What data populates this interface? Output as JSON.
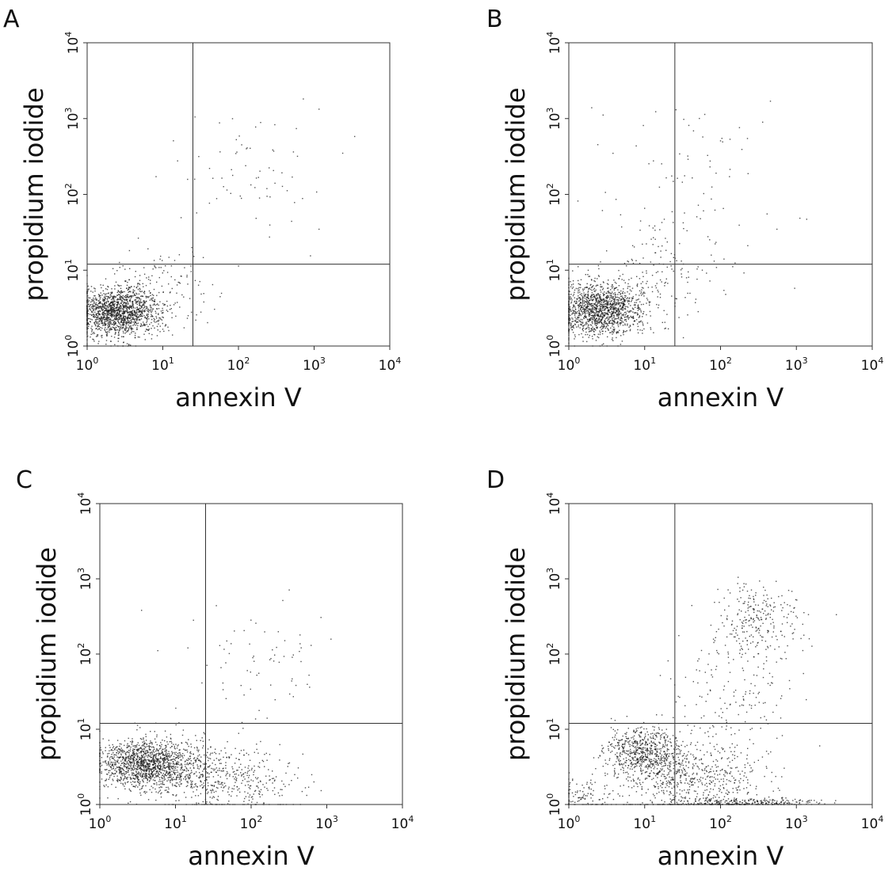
{
  "panels": [
    {
      "letter": "A",
      "xlabel": "annexin V",
      "ylabel": "propidium iodide"
    },
    {
      "letter": "B",
      "xlabel": "annexin V",
      "ylabel": "propidium iodide"
    },
    {
      "letter": "C",
      "xlabel": "annexin V",
      "ylabel": "propidium iodide"
    },
    {
      "letter": "D",
      "xlabel": "annexin V",
      "ylabel": "propidium iodide"
    }
  ],
  "chart_data": [
    {
      "type": "scatter",
      "panel": "A",
      "xlabel": "annexin V",
      "ylabel": "propidium iodide",
      "xscale": "log",
      "yscale": "log",
      "xlim": [
        1,
        10000
      ],
      "ylim": [
        1,
        10000
      ],
      "x_ticks": [
        "10^0",
        "10^1",
        "10^2",
        "10^3",
        "10^4"
      ],
      "y_ticks": [
        "10^0",
        "10^1",
        "10^2",
        "10^3",
        "10^4"
      ],
      "quadrant_gate": {
        "x": 25,
        "y": 12
      },
      "populations": [
        {
          "center": [
            2.5,
            2.8
          ],
          "spread_log": [
            0.28,
            0.16
          ],
          "points": 1500
        },
        {
          "center": [
            8,
            5
          ],
          "spread_log": [
            0.35,
            0.25
          ],
          "points": 180
        },
        {
          "center": [
            150,
            250
          ],
          "spread_log": [
            0.55,
            0.45
          ],
          "points": 70
        }
      ]
    },
    {
      "type": "scatter",
      "panel": "B",
      "xlabel": "annexin V",
      "ylabel": "propidium iodide",
      "xscale": "log",
      "yscale": "log",
      "xlim": [
        1,
        10000
      ],
      "ylim": [
        1,
        10000
      ],
      "x_ticks": [
        "10^0",
        "10^1",
        "10^2",
        "10^3",
        "10^4"
      ],
      "y_ticks": [
        "10^0",
        "10^1",
        "10^2",
        "10^3",
        "10^4"
      ],
      "quadrant_gate": {
        "x": 25,
        "y": 12
      },
      "populations": [
        {
          "center": [
            2.6,
            3.0
          ],
          "spread_log": [
            0.28,
            0.18
          ],
          "points": 1400
        },
        {
          "center": [
            12,
            8
          ],
          "spread_log": [
            0.45,
            0.35
          ],
          "points": 160
        },
        {
          "center": [
            40,
            120
          ],
          "spread_log": [
            0.7,
            0.6
          ],
          "points": 80
        }
      ]
    },
    {
      "type": "scatter",
      "panel": "C",
      "xlabel": "annexin V",
      "ylabel": "propidium iodide",
      "xscale": "log",
      "yscale": "log",
      "xlim": [
        1,
        10000
      ],
      "ylim": [
        1,
        10000
      ],
      "x_ticks": [
        "10^0",
        "10^1",
        "10^2",
        "10^3",
        "10^4"
      ],
      "y_ticks": [
        "10^0",
        "10^1",
        "10^2",
        "10^3",
        "10^4"
      ],
      "quadrant_gate": {
        "x": 25,
        "y": 12
      },
      "populations": [
        {
          "center": [
            3.5,
            3.5
          ],
          "spread_log": [
            0.3,
            0.16
          ],
          "points": 1100
        },
        {
          "center": [
            10,
            3
          ],
          "spread_log": [
            0.35,
            0.2
          ],
          "points": 450
        },
        {
          "center": [
            60,
            2
          ],
          "spread_log": [
            0.45,
            0.25
          ],
          "points": 350
        },
        {
          "center": [
            100,
            90
          ],
          "spread_log": [
            0.45,
            0.4
          ],
          "points": 70
        }
      ]
    },
    {
      "type": "scatter",
      "panel": "D",
      "xlabel": "annexin V",
      "ylabel": "propidium iodide",
      "xscale": "log",
      "yscale": "log",
      "xlim": [
        1,
        10000
      ],
      "ylim": [
        1,
        10000
      ],
      "x_ticks": [
        "10^0",
        "10^1",
        "10^2",
        "10^3",
        "10^4"
      ],
      "y_ticks": [
        "10^0",
        "10^1",
        "10^2",
        "10^3",
        "10^4"
      ],
      "quadrant_gate": {
        "x": 25,
        "y": 12
      },
      "populations": [
        {
          "center": [
            10,
            5
          ],
          "spread_log": [
            0.25,
            0.17
          ],
          "points": 650
        },
        {
          "center": [
            40,
            2
          ],
          "spread_log": [
            0.5,
            0.28
          ],
          "points": 650
        },
        {
          "center": [
            250,
            1.05
          ],
          "spread_log": [
            0.45,
            0.03
          ],
          "points": 250
        },
        {
          "center": [
            1.5,
            1.3
          ],
          "spread_log": [
            0.2,
            0.12
          ],
          "points": 100
        },
        {
          "center": [
            300,
            280
          ],
          "spread_log": [
            0.3,
            0.25
          ],
          "points": 260
        },
        {
          "center": [
            150,
            25
          ],
          "spread_log": [
            0.4,
            0.45
          ],
          "points": 160
        }
      ]
    }
  ]
}
